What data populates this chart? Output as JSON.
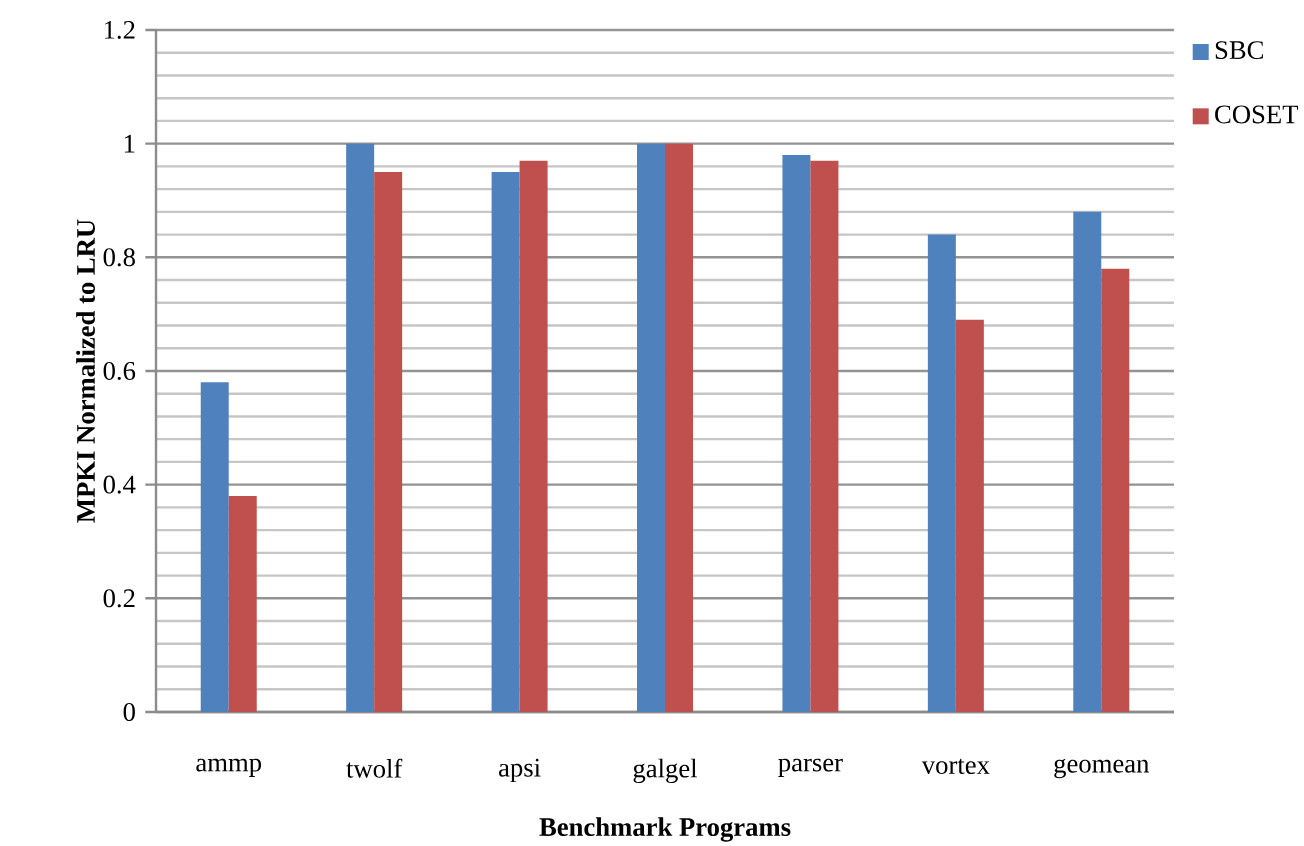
{
  "chart_data": {
    "type": "bar",
    "xlabel": "Benchmark Programs",
    "ylabel": "MPKI Normalized to LRU",
    "categories": [
      "ammp",
      "twolf",
      "apsi",
      "galgel",
      "parser",
      "vortex",
      "geomean"
    ],
    "series": [
      {
        "name": "SBC",
        "color": "#4f81bd",
        "values": [
          0.58,
          1.0,
          0.95,
          1.0,
          0.98,
          0.84,
          0.88
        ]
      },
      {
        "name": "COSET",
        "color": "#c0504d",
        "values": [
          0.38,
          0.95,
          0.97,
          1.0,
          0.97,
          0.69,
          0.78
        ]
      }
    ],
    "ylim": [
      0,
      1.2
    ],
    "yticks": [
      0,
      0.2,
      0.4,
      0.6,
      0.8,
      1,
      1.2
    ],
    "grid": "y",
    "legend": "right"
  }
}
